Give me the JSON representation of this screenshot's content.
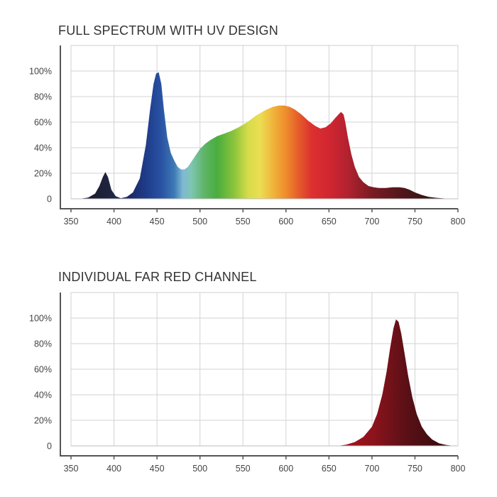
{
  "chart_data": [
    {
      "type": "area",
      "title": "FULL SPECTRUM WITH UV DESIGN",
      "xlabel": "",
      "ylabel": "",
      "xlim": [
        340,
        800
      ],
      "ylim": [
        0,
        110
      ],
      "x_ticks": [
        "350",
        "400",
        "450",
        "500",
        "550",
        "600",
        "650",
        "700",
        "750",
        "800"
      ],
      "y_ticks": [
        "0",
        "20%",
        "40%",
        "60%",
        "80%",
        "100%"
      ],
      "grid": true,
      "fill": "wavelength-colored spectrum gradient",
      "x": [
        360,
        370,
        378,
        383,
        387,
        390,
        393,
        397,
        402,
        408,
        415,
        422,
        430,
        437,
        442,
        446,
        449,
        452,
        455,
        458,
        462,
        466,
        470,
        474,
        478,
        482,
        486,
        490,
        495,
        500,
        506,
        512,
        520,
        528,
        536,
        545,
        555,
        565,
        575,
        585,
        592,
        598,
        604,
        610,
        618,
        626,
        634,
        640,
        646,
        652,
        657,
        661,
        664,
        667,
        669,
        672,
        676,
        680,
        685,
        690,
        696,
        702,
        708,
        716,
        724,
        732,
        738,
        744,
        750,
        758,
        766,
        775,
        785,
        795
      ],
      "y": [
        0,
        1,
        4,
        10,
        17,
        21,
        17,
        7,
        2,
        0.5,
        1.5,
        5,
        16,
        42,
        70,
        90,
        98,
        99,
        90,
        70,
        48,
        36,
        30,
        25,
        23,
        23,
        25,
        29,
        34,
        39,
        43,
        46,
        49,
        51,
        53,
        56,
        60,
        65,
        69,
        72,
        73,
        73,
        72,
        70,
        66,
        61,
        57,
        55,
        56,
        59,
        63,
        66,
        68,
        66,
        60,
        48,
        35,
        25,
        17,
        13,
        10,
        9,
        8.5,
        8.5,
        9,
        9,
        8.5,
        7,
        5,
        3,
        1.5,
        0.8,
        0.3,
        0
      ]
    },
    {
      "type": "area",
      "title": "INDIVIDUAL FAR RED CHANNEL",
      "xlabel": "",
      "ylabel": "",
      "xlim": [
        340,
        800
      ],
      "ylim": [
        0,
        110
      ],
      "x_ticks": [
        "350",
        "400",
        "450",
        "500",
        "550",
        "600",
        "650",
        "700",
        "750",
        "800"
      ],
      "y_ticks": [
        "0",
        "20%",
        "40%",
        "60%",
        "80%",
        "100%"
      ],
      "grid": true,
      "fill": "dark red gradient",
      "x": [
        660,
        670,
        680,
        690,
        700,
        706,
        712,
        717,
        721,
        725,
        728,
        731,
        734,
        738,
        742,
        747,
        752,
        758,
        764,
        770,
        778,
        786,
        795
      ],
      "y": [
        0,
        1,
        3,
        7,
        15,
        25,
        40,
        58,
        76,
        92,
        99,
        97,
        88,
        72,
        55,
        38,
        25,
        15,
        9,
        5,
        2,
        0.8,
        0
      ]
    }
  ]
}
